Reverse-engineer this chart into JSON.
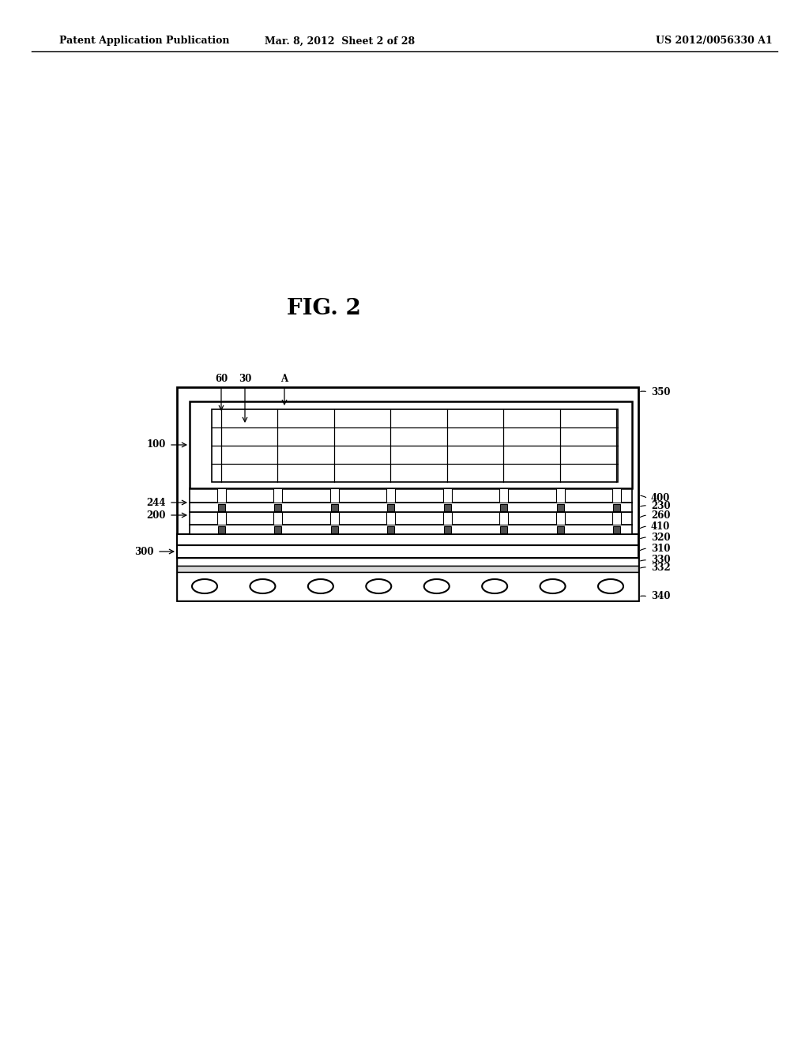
{
  "bg_color": "#ffffff",
  "title_fig": "FIG. 2",
  "header_left": "Patent Application Publication",
  "header_mid": "Mar. 8, 2012  Sheet 2 of 28",
  "header_right": "US 2012/0056330 A1",
  "line_color": "#000000",
  "fill_color": "#ffffff",
  "label_fontsize": 8.5,
  "header_fontsize": 9.0,
  "title_fontsize": 20,
  "diagram": {
    "ox": 0.22,
    "oy": 0.395,
    "ow": 0.59,
    "oh": 0.265,
    "num_cols": 8,
    "num_bumps": 8
  }
}
